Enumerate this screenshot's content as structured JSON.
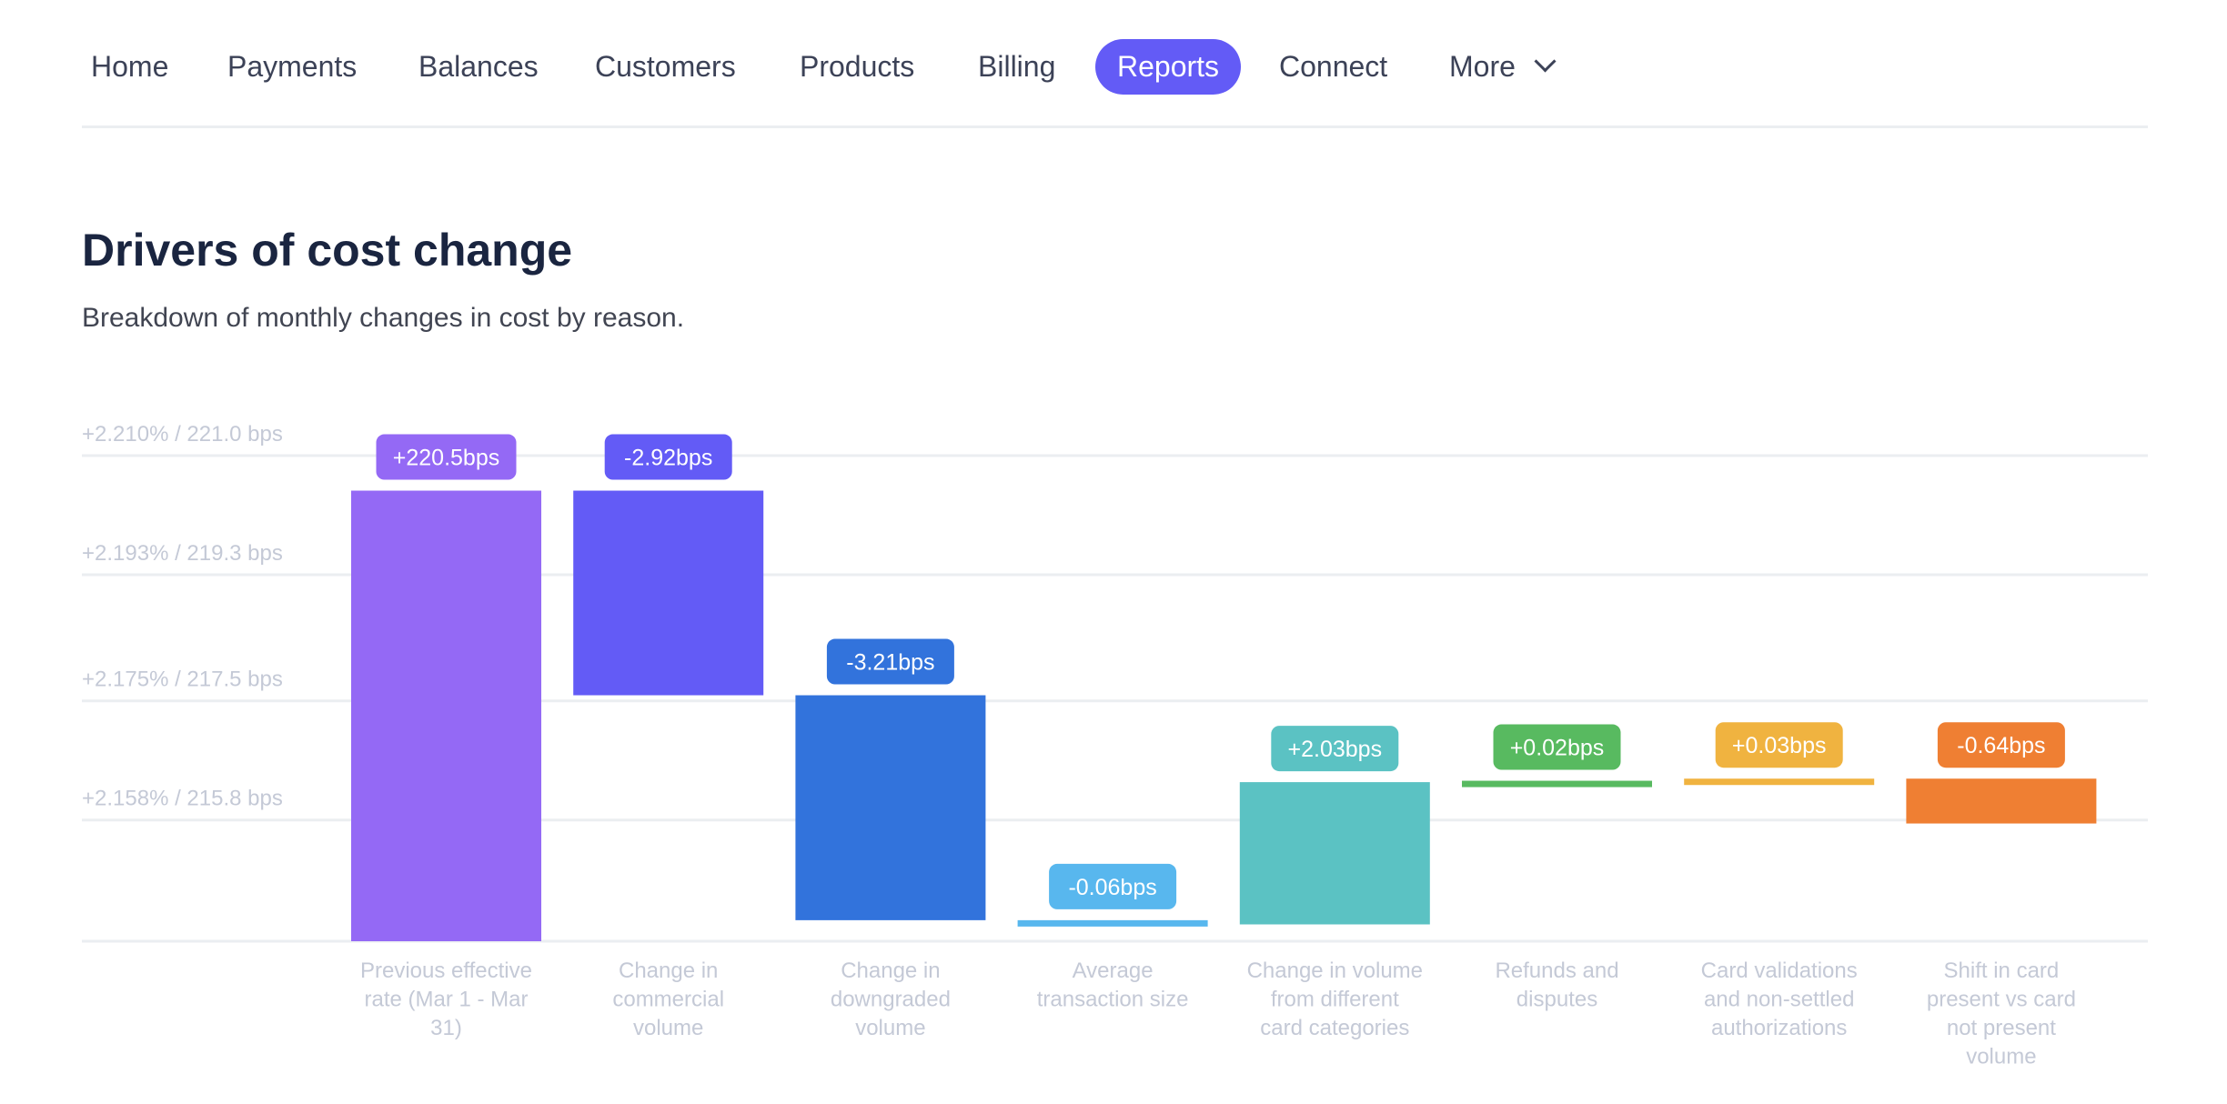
{
  "nav": {
    "items": [
      {
        "label": "Home"
      },
      {
        "label": "Payments"
      },
      {
        "label": "Balances"
      },
      {
        "label": "Customers"
      },
      {
        "label": "Products"
      },
      {
        "label": "Billing"
      },
      {
        "label": "Reports",
        "active": true
      },
      {
        "label": "Connect"
      }
    ],
    "more_label": "More",
    "more_icon": "chevron-down-icon",
    "active_color": "#635bf6"
  },
  "header": {
    "title": "Drivers of cost change",
    "subtitle": "Breakdown of monthly changes in cost by reason."
  },
  "chart_data": {
    "type": "waterfall",
    "unit": "bps",
    "ylim": [
      214.07,
      221.0
    ],
    "grid": true,
    "y_ticks": [
      {
        "value": 221.0,
        "label": "+2.210% / 221.0 bps"
      },
      {
        "value": 219.3,
        "label": "+2.193% / 219.3 bps"
      },
      {
        "value": 217.5,
        "label": "+2.175% / 217.5 bps"
      },
      {
        "value": 215.8,
        "label": "+2.158% / 215.8 bps"
      }
    ],
    "bars": [
      {
        "category": [
          "Previous effective",
          "rate (Mar 1 - Mar",
          "31)"
        ],
        "value": 220.5,
        "start": 214.07,
        "end": 220.5,
        "label": "+220.5bps",
        "color": "#9469f5"
      },
      {
        "category": [
          "Change in",
          "commercial",
          "volume"
        ],
        "value": -2.92,
        "start": 220.5,
        "end": 217.58,
        "label": "-2.92bps",
        "color": "#635bf6"
      },
      {
        "category": [
          "Change in",
          "downgraded",
          "volume"
        ],
        "value": -3.21,
        "start": 217.58,
        "end": 214.37,
        "label": "-3.21bps",
        "color": "#3273dc"
      },
      {
        "category": [
          "Average",
          "transaction size"
        ],
        "value": -0.06,
        "start": 214.37,
        "end": 214.31,
        "label": "-0.06bps",
        "color": "#58b7ee"
      },
      {
        "category": [
          "Change in volume",
          "from different",
          "card categories"
        ],
        "value": 2.03,
        "start": 214.31,
        "end": 216.34,
        "label": "+2.03bps",
        "color": "#5bc2c3"
      },
      {
        "category": [
          "Refunds and",
          "disputes"
        ],
        "value": 0.02,
        "start": 216.34,
        "end": 216.36,
        "label": "+0.02bps",
        "color": "#58ba60"
      },
      {
        "category": [
          "Card validations",
          "and non-settled",
          "authorizations"
        ],
        "value": 0.03,
        "start": 216.36,
        "end": 216.39,
        "label": "+0.03bps",
        "color": "#f0b340"
      },
      {
        "category": [
          "Shift in card",
          "present vs card",
          "not present",
          "volume"
        ],
        "value": -0.64,
        "start": 216.39,
        "end": 215.75,
        "label": "-0.64bps",
        "color": "#ef7f33"
      }
    ]
  }
}
